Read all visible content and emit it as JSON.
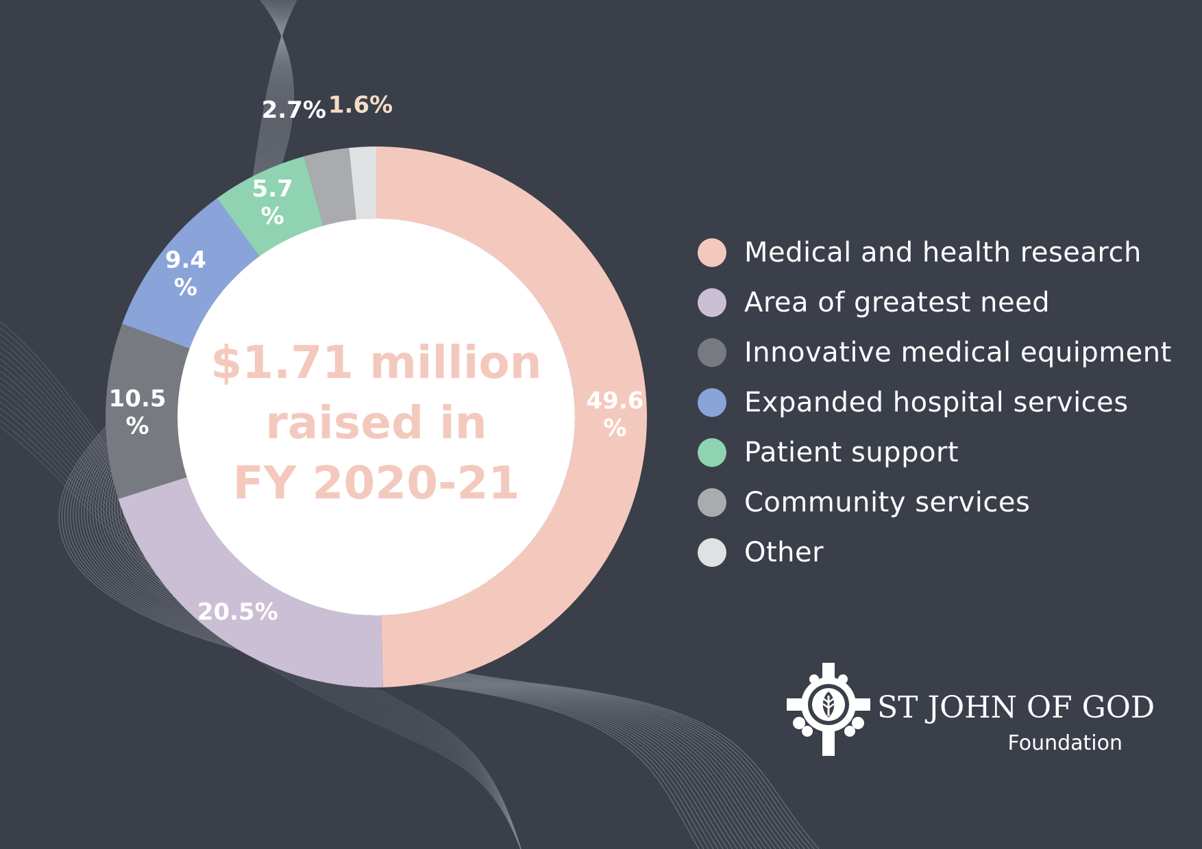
{
  "chart_data": {
    "type": "pie",
    "variant": "donut",
    "center_title_lines": [
      "$1.71 million",
      "raised in",
      "FY 2020-21"
    ],
    "slices": [
      {
        "name": "Medical and health research",
        "value": 49.6,
        "label_lines": [
          "49.6",
          "%"
        ],
        "color": "#f4c9bd",
        "label_color": "#ffffff"
      },
      {
        "name": "Area of greatest need",
        "value": 20.5,
        "label_lines": [
          "20.5%"
        ],
        "color": "#cbbfd6",
        "label_color": "#ffffff"
      },
      {
        "name": "Innovative medical equipment",
        "value": 10.5,
        "label_lines": [
          "10.5",
          "%"
        ],
        "color": "#777a80",
        "label_color": "#ffffff"
      },
      {
        "name": "Expanded hospital services",
        "value": 9.4,
        "label_lines": [
          "9.4",
          "%"
        ],
        "color": "#8aa4d9",
        "label_color": "#ffffff"
      },
      {
        "name": "Patient support",
        "value": 5.7,
        "label_lines": [
          "5.7",
          "%"
        ],
        "color": "#8fd3b2",
        "label_color": "#ffffff"
      },
      {
        "name": "Community services",
        "value": 2.7,
        "label_lines": [
          "2.7%"
        ],
        "color": "#a9abaf",
        "label_color": "#ffffff"
      },
      {
        "name": "Other",
        "value": 1.6,
        "label_lines": [
          "1.6%"
        ],
        "color": "#e0e1e3",
        "label_color": "#f4dcc5"
      }
    ],
    "legend_position": "right"
  },
  "brand": {
    "name": "ST JOHN OF GOD",
    "subname": "Foundation"
  },
  "colors": {
    "background": "#3a3f4a",
    "center_text": "#f4c9bd",
    "wave_lines": "#8a8e96"
  }
}
